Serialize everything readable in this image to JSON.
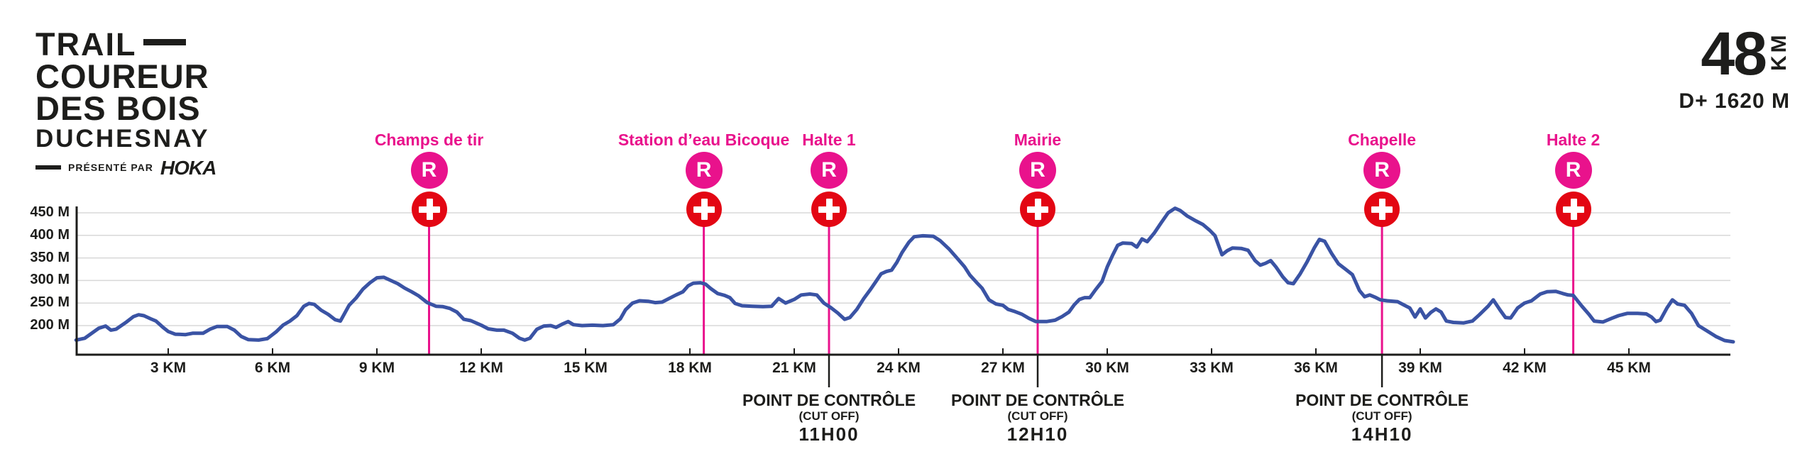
{
  "header": {
    "logo": {
      "line1": "TRAIL",
      "line2": "COUREUR",
      "line3": "DES BOIS",
      "line4": "DUCHESNAY",
      "presented_by": "PRÉSENTÉ PAR",
      "sponsor": "HOKA"
    },
    "distance_value": "48",
    "distance_unit": "KM",
    "elevation_gain": "D+ 1620 M"
  },
  "colors": {
    "pink": "#E9128C",
    "red": "#E30613",
    "blue": "#3A53A4",
    "grid": "#D8D8D8",
    "axis": "#1D1D1B"
  },
  "checkpoints": [
    {
      "name": "Champs de tir",
      "km": 10.5,
      "refuel_letter": "R",
      "has_medical": true,
      "cutoff": null
    },
    {
      "name": "Station d’eau Bicoque",
      "km": 18.4,
      "refuel_letter": "R",
      "has_medical": true,
      "cutoff": null
    },
    {
      "name": "Halte 1",
      "km": 22.0,
      "refuel_letter": "R",
      "has_medical": true,
      "cutoff": {
        "line1": "POINT DE CONTRÔLE",
        "line2": "(CUT OFF)",
        "time": "11H00"
      }
    },
    {
      "name": "Mairie",
      "km": 28.0,
      "refuel_letter": "R",
      "has_medical": true,
      "cutoff": {
        "line1": "POINT DE CONTRÔLE",
        "line2": "(CUT OFF)",
        "time": "12H10"
      }
    },
    {
      "name": "Chapelle",
      "km": 37.9,
      "refuel_letter": "R",
      "has_medical": true,
      "cutoff": {
        "line1": "POINT DE CONTRÔLE",
        "line2": "(CUT OFF)",
        "time": "14H10"
      }
    },
    {
      "name": "Halte 2",
      "km": 43.4,
      "refuel_letter": "R",
      "has_medical": true,
      "cutoff": null
    }
  ],
  "chart_data": {
    "type": "line",
    "title": "Trail Coureur des Bois Duchesnay – 48 KM elevation profile",
    "xlabel": "KM",
    "ylabel": "M",
    "x_range": [
      0,
      48
    ],
    "y_range_labeled": [
      200,
      450
    ],
    "x_ticks": [
      3,
      6,
      9,
      12,
      15,
      18,
      21,
      24,
      27,
      30,
      33,
      36,
      39,
      42,
      45
    ],
    "x_tick_suffix": " KM",
    "y_ticks": [
      450,
      400,
      350,
      300,
      250,
      200
    ],
    "y_tick_suffix": " M",
    "grid": true,
    "profile": [
      [
        0.35,
        168
      ],
      [
        0.6,
        172
      ],
      [
        0.8,
        183
      ],
      [
        1.0,
        194
      ],
      [
        1.2,
        199
      ],
      [
        1.35,
        190
      ],
      [
        1.5,
        192
      ],
      [
        1.8,
        208
      ],
      [
        2.0,
        220
      ],
      [
        2.15,
        224
      ],
      [
        2.3,
        222
      ],
      [
        2.5,
        215
      ],
      [
        2.65,
        210
      ],
      [
        2.85,
        196
      ],
      [
        3.0,
        187
      ],
      [
        3.2,
        181
      ],
      [
        3.5,
        180
      ],
      [
        3.7,
        183
      ],
      [
        4.0,
        183
      ],
      [
        4.2,
        192
      ],
      [
        4.4,
        198
      ],
      [
        4.7,
        198
      ],
      [
        4.9,
        190
      ],
      [
        5.1,
        176
      ],
      [
        5.3,
        169
      ],
      [
        5.6,
        168
      ],
      [
        5.85,
        171
      ],
      [
        6.1,
        186
      ],
      [
        6.3,
        201
      ],
      [
        6.5,
        210
      ],
      [
        6.7,
        222
      ],
      [
        6.9,
        243
      ],
      [
        7.05,
        249
      ],
      [
        7.2,
        247
      ],
      [
        7.4,
        234
      ],
      [
        7.6,
        225
      ],
      [
        7.8,
        213
      ],
      [
        7.95,
        210
      ],
      [
        8.2,
        245
      ],
      [
        8.4,
        261
      ],
      [
        8.6,
        281
      ],
      [
        8.8,
        295
      ],
      [
        9.0,
        306
      ],
      [
        9.2,
        307
      ],
      [
        9.4,
        300
      ],
      [
        9.6,
        293
      ],
      [
        9.8,
        283
      ],
      [
        10.0,
        275
      ],
      [
        10.2,
        266
      ],
      [
        10.45,
        251
      ],
      [
        10.7,
        243
      ],
      [
        10.9,
        242
      ],
      [
        11.1,
        238
      ],
      [
        11.3,
        230
      ],
      [
        11.5,
        214
      ],
      [
        11.7,
        211
      ],
      [
        12.0,
        201
      ],
      [
        12.2,
        193
      ],
      [
        12.45,
        190
      ],
      [
        12.65,
        190
      ],
      [
        12.9,
        183
      ],
      [
        13.1,
        172
      ],
      [
        13.25,
        168
      ],
      [
        13.4,
        172
      ],
      [
        13.6,
        192
      ],
      [
        13.8,
        199
      ],
      [
        14.0,
        200
      ],
      [
        14.15,
        196
      ],
      [
        14.35,
        204
      ],
      [
        14.5,
        209
      ],
      [
        14.65,
        202
      ],
      [
        14.9,
        200
      ],
      [
        15.2,
        201
      ],
      [
        15.5,
        200
      ],
      [
        15.8,
        202
      ],
      [
        16.0,
        215
      ],
      [
        16.15,
        235
      ],
      [
        16.35,
        250
      ],
      [
        16.55,
        255
      ],
      [
        16.8,
        254
      ],
      [
        17.0,
        251
      ],
      [
        17.2,
        252
      ],
      [
        17.4,
        260
      ],
      [
        17.6,
        268
      ],
      [
        17.8,
        275
      ],
      [
        17.95,
        288
      ],
      [
        18.1,
        294
      ],
      [
        18.3,
        295
      ],
      [
        18.45,
        292
      ],
      [
        18.6,
        282
      ],
      [
        18.8,
        271
      ],
      [
        19.0,
        267
      ],
      [
        19.15,
        262
      ],
      [
        19.3,
        249
      ],
      [
        19.5,
        244
      ],
      [
        19.8,
        243
      ],
      [
        20.1,
        242
      ],
      [
        20.35,
        243
      ],
      [
        20.55,
        260
      ],
      [
        20.75,
        250
      ],
      [
        21.0,
        258
      ],
      [
        21.2,
        268
      ],
      [
        21.45,
        270
      ],
      [
        21.65,
        268
      ],
      [
        21.85,
        250
      ],
      [
        22.05,
        240
      ],
      [
        22.25,
        228
      ],
      [
        22.45,
        214
      ],
      [
        22.6,
        218
      ],
      [
        22.8,
        236
      ],
      [
        23.0,
        260
      ],
      [
        23.2,
        281
      ],
      [
        23.35,
        298
      ],
      [
        23.5,
        315
      ],
      [
        23.65,
        320
      ],
      [
        23.8,
        323
      ],
      [
        23.95,
        340
      ],
      [
        24.1,
        362
      ],
      [
        24.3,
        385
      ],
      [
        24.45,
        397
      ],
      [
        24.7,
        399
      ],
      [
        25.0,
        398
      ],
      [
        25.2,
        388
      ],
      [
        25.45,
        370
      ],
      [
        25.7,
        348
      ],
      [
        25.9,
        330
      ],
      [
        26.05,
        312
      ],
      [
        26.25,
        295
      ],
      [
        26.4,
        283
      ],
      [
        26.6,
        257
      ],
      [
        26.8,
        248
      ],
      [
        27.0,
        245
      ],
      [
        27.15,
        236
      ],
      [
        27.35,
        231
      ],
      [
        27.55,
        225
      ],
      [
        27.75,
        216
      ],
      [
        27.95,
        209
      ],
      [
        28.25,
        209
      ],
      [
        28.5,
        212
      ],
      [
        28.7,
        220
      ],
      [
        28.9,
        230
      ],
      [
        29.05,
        246
      ],
      [
        29.2,
        258
      ],
      [
        29.35,
        262
      ],
      [
        29.5,
        262
      ],
      [
        29.65,
        278
      ],
      [
        29.85,
        298
      ],
      [
        30.0,
        330
      ],
      [
        30.15,
        355
      ],
      [
        30.3,
        378
      ],
      [
        30.45,
        383
      ],
      [
        30.7,
        382
      ],
      [
        30.85,
        374
      ],
      [
        31.0,
        392
      ],
      [
        31.15,
        386
      ],
      [
        31.35,
        405
      ],
      [
        31.55,
        428
      ],
      [
        31.75,
        450
      ],
      [
        31.95,
        460
      ],
      [
        32.1,
        455
      ],
      [
        32.3,
        443
      ],
      [
        32.55,
        432
      ],
      [
        32.75,
        424
      ],
      [
        32.95,
        411
      ],
      [
        33.1,
        399
      ],
      [
        33.2,
        378
      ],
      [
        33.3,
        357
      ],
      [
        33.45,
        366
      ],
      [
        33.6,
        372
      ],
      [
        33.85,
        371
      ],
      [
        34.05,
        367
      ],
      [
        34.25,
        344
      ],
      [
        34.4,
        334
      ],
      [
        34.55,
        338
      ],
      [
        34.7,
        344
      ],
      [
        34.85,
        330
      ],
      [
        35.05,
        308
      ],
      [
        35.2,
        295
      ],
      [
        35.35,
        293
      ],
      [
        35.55,
        315
      ],
      [
        35.75,
        342
      ],
      [
        35.95,
        372
      ],
      [
        36.1,
        391
      ],
      [
        36.25,
        387
      ],
      [
        36.45,
        360
      ],
      [
        36.65,
        337
      ],
      [
        36.85,
        325
      ],
      [
        37.05,
        313
      ],
      [
        37.25,
        278
      ],
      [
        37.4,
        264
      ],
      [
        37.55,
        268
      ],
      [
        37.7,
        263
      ],
      [
        37.85,
        257
      ],
      [
        38.05,
        255
      ],
      [
        38.35,
        253
      ],
      [
        38.55,
        245
      ],
      [
        38.7,
        239
      ],
      [
        38.85,
        219
      ],
      [
        39.0,
        237
      ],
      [
        39.15,
        217
      ],
      [
        39.3,
        229
      ],
      [
        39.45,
        237
      ],
      [
        39.6,
        230
      ],
      [
        39.75,
        210
      ],
      [
        39.95,
        207
      ],
      [
        40.25,
        206
      ],
      [
        40.5,
        210
      ],
      [
        40.7,
        224
      ],
      [
        40.95,
        243
      ],
      [
        41.1,
        257
      ],
      [
        41.3,
        234
      ],
      [
        41.45,
        218
      ],
      [
        41.6,
        217
      ],
      [
        41.8,
        239
      ],
      [
        42.0,
        250
      ],
      [
        42.2,
        255
      ],
      [
        42.45,
        270
      ],
      [
        42.65,
        275
      ],
      [
        42.9,
        276
      ],
      [
        43.1,
        271
      ],
      [
        43.25,
        268
      ],
      [
        43.4,
        267
      ],
      [
        43.65,
        243
      ],
      [
        43.85,
        225
      ],
      [
        44.0,
        210
      ],
      [
        44.25,
        208
      ],
      [
        44.5,
        216
      ],
      [
        44.7,
        222
      ],
      [
        44.95,
        227
      ],
      [
        45.25,
        227
      ],
      [
        45.5,
        226
      ],
      [
        45.65,
        219
      ],
      [
        45.78,
        209
      ],
      [
        45.9,
        212
      ],
      [
        46.1,
        240
      ],
      [
        46.25,
        257
      ],
      [
        46.4,
        248
      ],
      [
        46.6,
        245
      ],
      [
        46.8,
        227
      ],
      [
        47.0,
        200
      ],
      [
        47.25,
        188
      ],
      [
        47.5,
        176
      ],
      [
        47.75,
        167
      ],
      [
        48.0,
        164
      ]
    ]
  }
}
